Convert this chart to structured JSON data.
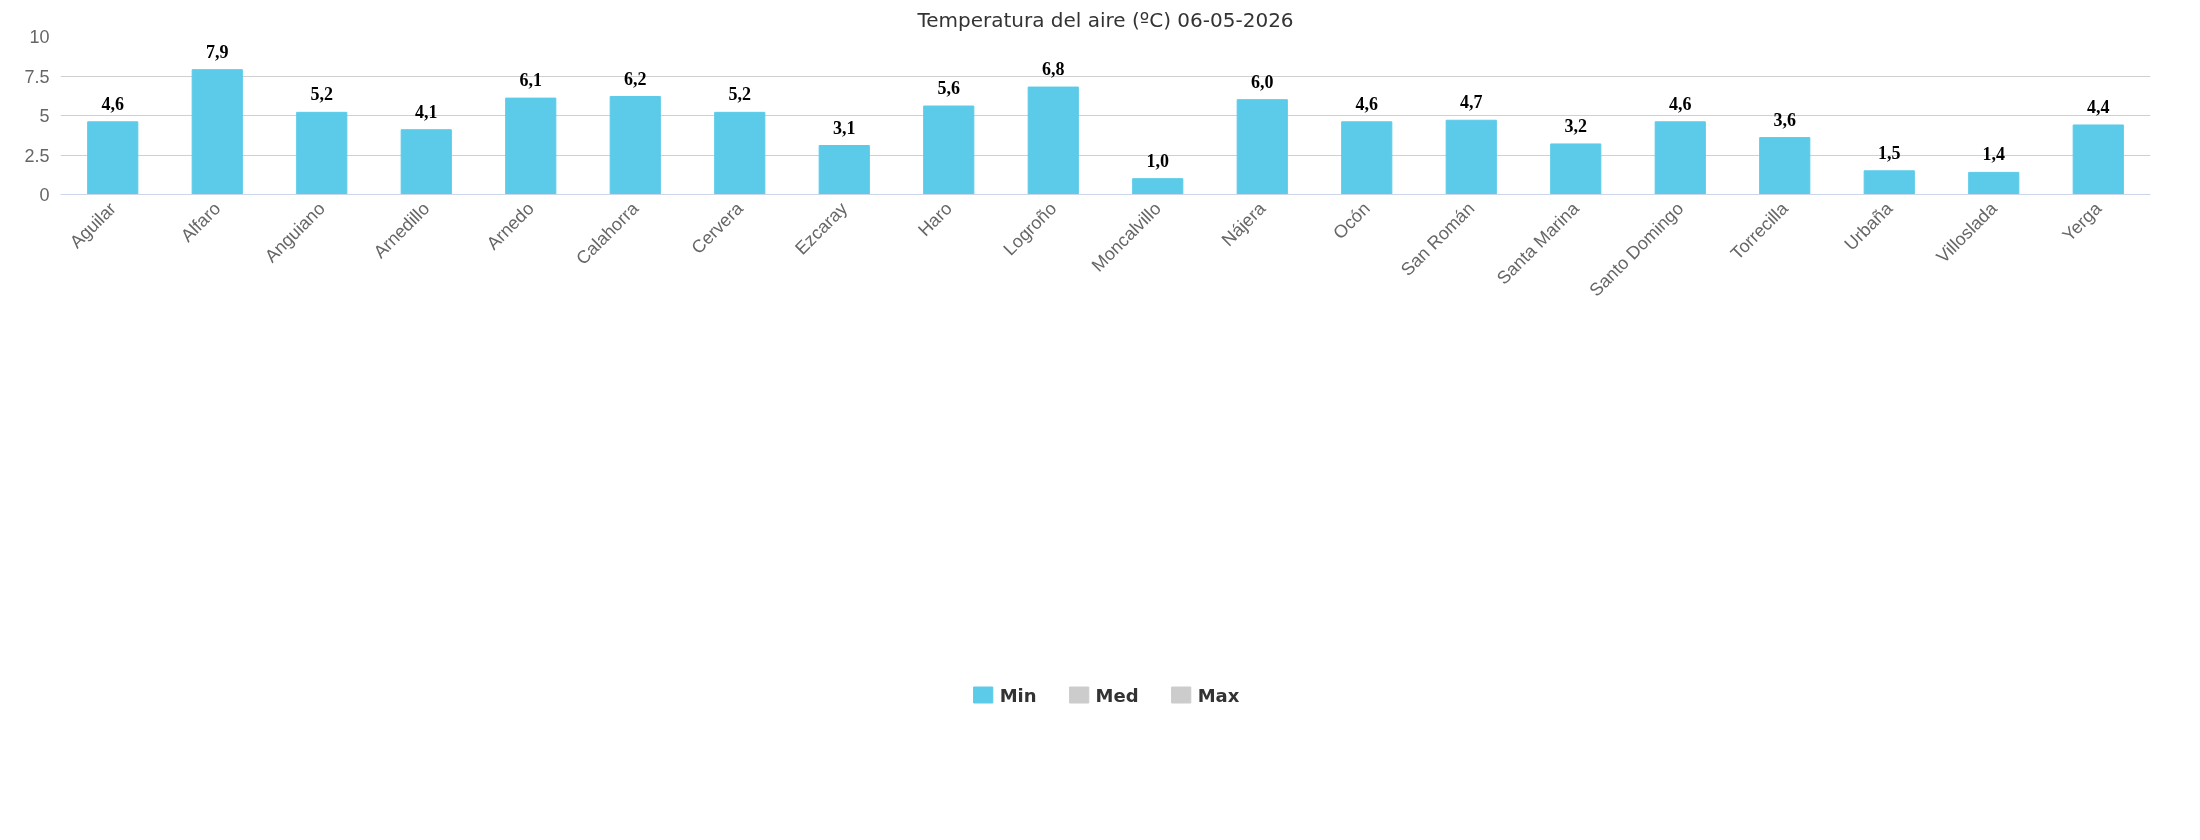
{
  "chart_data": {
    "type": "bar",
    "title": "Temperatura del aire (ºC) 06-05-2026",
    "categories": [
      "Aguilar",
      "Alfaro",
      "Anguiano",
      "Arnedillo",
      "Arnedo",
      "Calahorra",
      "Cervera",
      "Ezcaray",
      "Haro",
      "Logroño",
      "Moncalvillo",
      "Nájera",
      "Ocón",
      "San Román",
      "Santa Marina",
      "Santo Domingo",
      "Torrecilla",
      "Urbaña",
      "Villoslada",
      "Yerga"
    ],
    "series": [
      {
        "name": "Min",
        "color": "#5bcbe9",
        "values": [
          4.6,
          7.9,
          5.2,
          4.1,
          6.1,
          6.2,
          5.2,
          3.1,
          5.6,
          6.8,
          1.0,
          6.0,
          4.6,
          4.7,
          3.2,
          4.6,
          3.6,
          1.5,
          1.4,
          4.4
        ],
        "value_labels": [
          "4,6",
          "7,9",
          "5,2",
          "4,1",
          "6,1",
          "6,2",
          "5,2",
          "3,1",
          "5,6",
          "6,8",
          "1,0",
          "6,0",
          "4,6",
          "4,7",
          "3,2",
          "4,6",
          "3,6",
          "1,5",
          "1,4",
          "4,4"
        ]
      },
      {
        "name": "Med",
        "color": "#cccccc",
        "values": [
          null,
          null,
          null,
          null,
          null,
          null,
          null,
          null,
          null,
          null,
          null,
          null,
          null,
          null,
          null,
          null,
          null,
          null,
          null,
          null
        ]
      },
      {
        "name": "Max",
        "color": "#cccccc",
        "values": [
          null,
          null,
          null,
          null,
          null,
          null,
          null,
          null,
          null,
          null,
          null,
          null,
          null,
          null,
          null,
          null,
          null,
          null,
          null,
          null
        ]
      }
    ],
    "ylim": [
      0,
      10
    ],
    "yticks": [
      0,
      2.5,
      5,
      7.5,
      10
    ],
    "grid": "y",
    "legend": "bottom"
  }
}
